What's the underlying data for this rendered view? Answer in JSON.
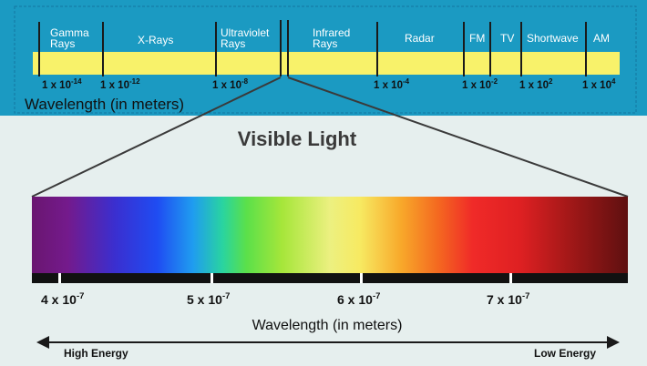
{
  "colors": {
    "panel": "#1b9ac2",
    "band": "#f8f26a",
    "background": "#e6efee",
    "text_dark": "#111111",
    "text_title": "#3a3a3a",
    "text_light": "#ffffff"
  },
  "spectrum": {
    "regions": [
      "Gamma\nRays",
      "X-Rays",
      "Ultraviolet\nRays",
      "Infrared\nRays",
      "Radar",
      "FM",
      "TV",
      "Shortwave",
      "AM"
    ],
    "wavelengths": [
      {
        "base": "1 x 10",
        "exp": "-14"
      },
      {
        "base": "1 x 10",
        "exp": "-12"
      },
      {
        "base": "1 x 10",
        "exp": "-8"
      },
      {
        "base": "1 x 10",
        "exp": "-4"
      },
      {
        "base": "1 x 10",
        "exp": "-2"
      },
      {
        "base": "1 x 10",
        "exp": "2"
      },
      {
        "base": "1 x 10",
        "exp": "4"
      }
    ],
    "axis_label": "Wavelength (in meters)"
  },
  "visible": {
    "title": "Visible Light",
    "ticks": [
      {
        "base": "4 x 10",
        "exp": "-7"
      },
      {
        "base": "5 x 10",
        "exp": "-7"
      },
      {
        "base": "6 x 10",
        "exp": "-7"
      },
      {
        "base": "7 x 10",
        "exp": "-7"
      }
    ],
    "axis_label": "Wavelength (in meters)"
  },
  "energy": {
    "left": "High Energy",
    "right": "Low Energy"
  }
}
